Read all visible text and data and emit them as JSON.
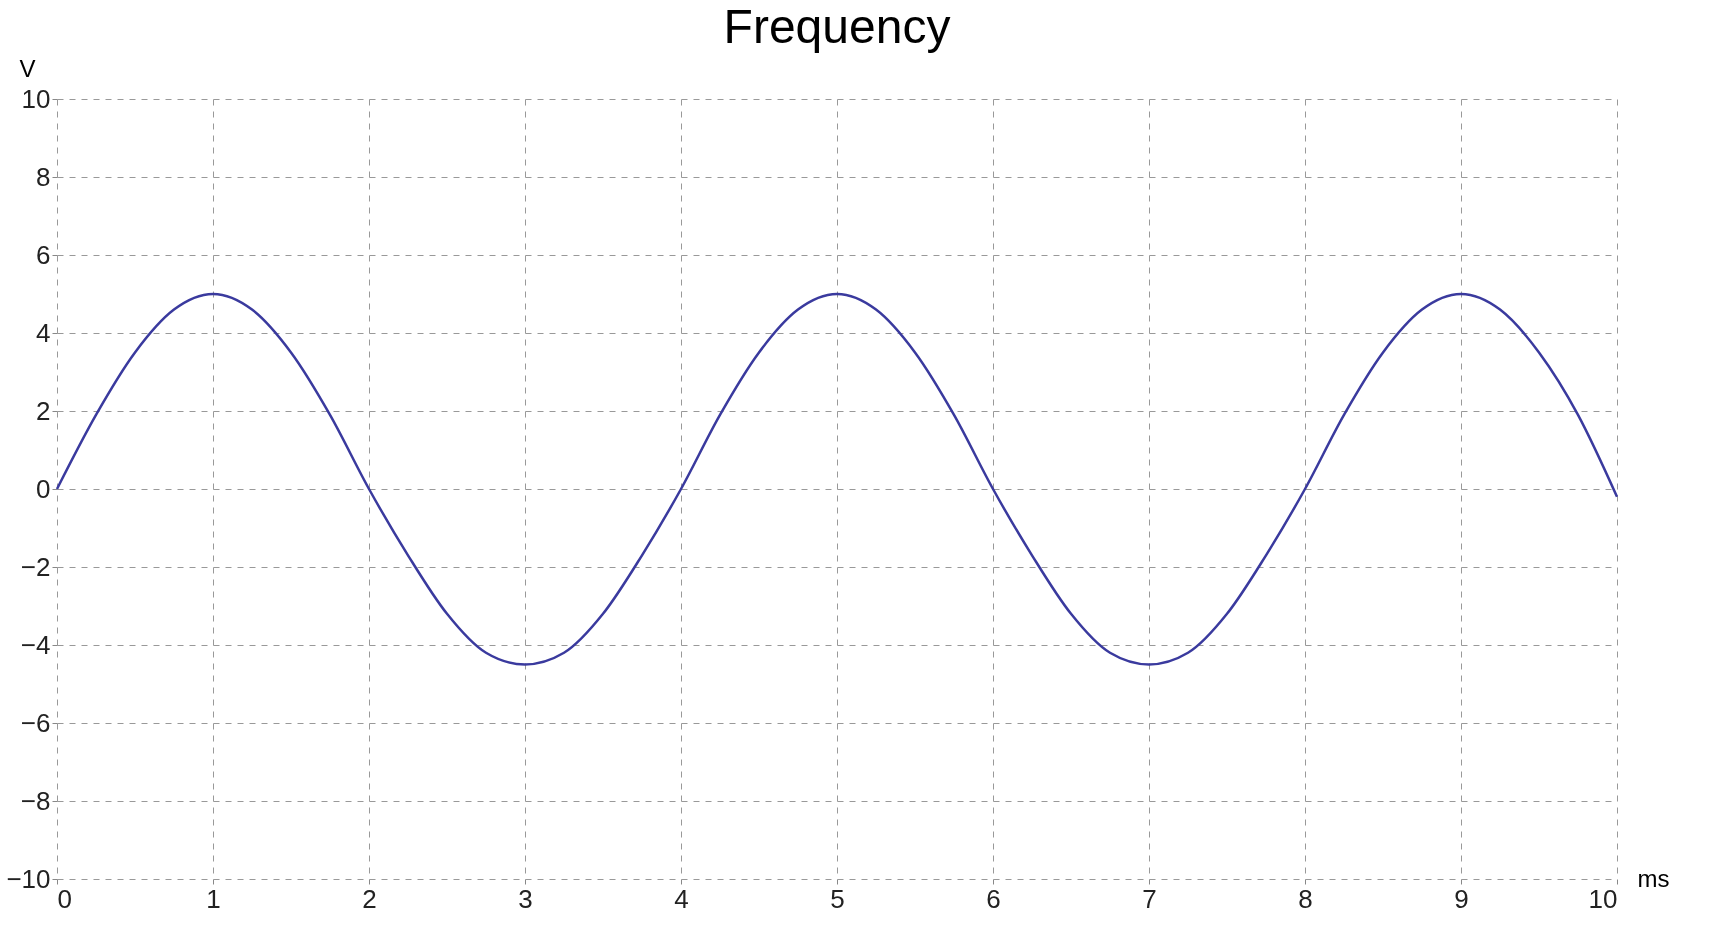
{
  "chart_data": {
    "type": "line",
    "title": "Frequency",
    "xlabel": "ms",
    "ylabel": "V",
    "x": [
      0,
      0.25,
      0.5,
      0.75,
      1,
      1.25,
      1.5,
      1.75,
      2,
      2.25,
      2.5,
      2.75,
      3,
      3.25,
      3.5,
      3.75,
      4,
      4.25,
      4.5,
      4.75,
      5,
      5.25,
      5.5,
      5.75,
      6,
      6.25,
      6.5,
      6.75,
      7,
      7.25,
      7.5,
      7.75,
      8,
      8.25,
      8.5,
      8.75,
      9,
      9.25,
      9.5,
      9.75,
      10
    ],
    "series": [
      {
        "color": "#3a3a9e",
        "values": [
          0,
          1.9,
          3.5,
          4.6,
          5.0,
          4.6,
          3.5,
          1.9,
          0,
          -1.7,
          -3.2,
          -4.2,
          -4.5,
          -4.2,
          -3.2,
          -1.7,
          0,
          1.9,
          3.5,
          4.6,
          5.0,
          4.6,
          3.5,
          1.9,
          0,
          -1.7,
          -3.2,
          -4.2,
          -4.5,
          -4.2,
          -3.2,
          -1.7,
          0,
          1.9,
          3.5,
          4.6,
          5.0,
          4.6,
          3.5,
          1.9,
          -0.2
        ]
      }
    ],
    "xlim": [
      0,
      10
    ],
    "xticks": [
      0,
      1,
      2,
      3,
      4,
      5,
      6,
      7,
      8,
      9,
      10
    ],
    "ylim": [
      -10,
      10
    ],
    "yticks": [
      -10,
      -8,
      -6,
      -4,
      -2,
      0,
      2,
      4,
      6,
      8,
      10
    ],
    "grid": true,
    "line_style": "solid",
    "marker": "none"
  }
}
